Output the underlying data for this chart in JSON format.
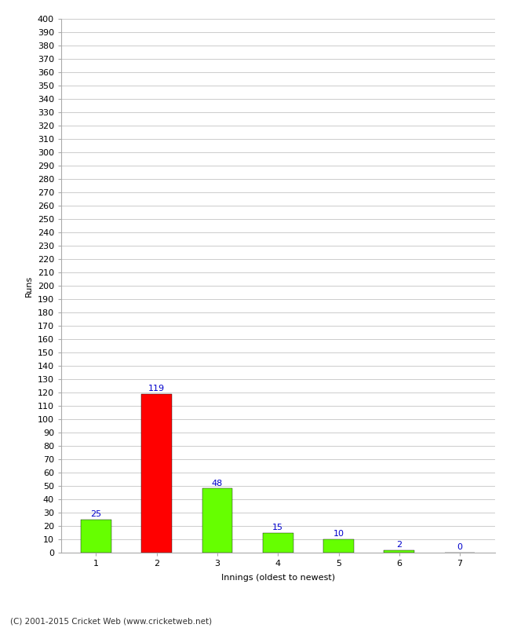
{
  "categories": [
    "1",
    "2",
    "3",
    "4",
    "5",
    "6",
    "7"
  ],
  "values": [
    25,
    119,
    48,
    15,
    10,
    2,
    0
  ],
  "bar_colors": [
    "#66ff00",
    "#ff0000",
    "#66ff00",
    "#66ff00",
    "#66ff00",
    "#66ff00",
    "#66ff00"
  ],
  "ylabel": "Runs",
  "xlabel": "Innings (oldest to newest)",
  "footer": "(C) 2001-2015 Cricket Web (www.cricketweb.net)",
  "ylim": [
    0,
    400
  ],
  "background_color": "#ffffff",
  "grid_color": "#cccccc",
  "label_color": "#0000cc",
  "bar_edge_color": "#000000",
  "bar_edge_width": 0.3,
  "bar_width": 0.5,
  "label_fontsize": 8,
  "tick_fontsize": 8,
  "axis_label_fontsize": 8,
  "footer_fontsize": 7.5
}
